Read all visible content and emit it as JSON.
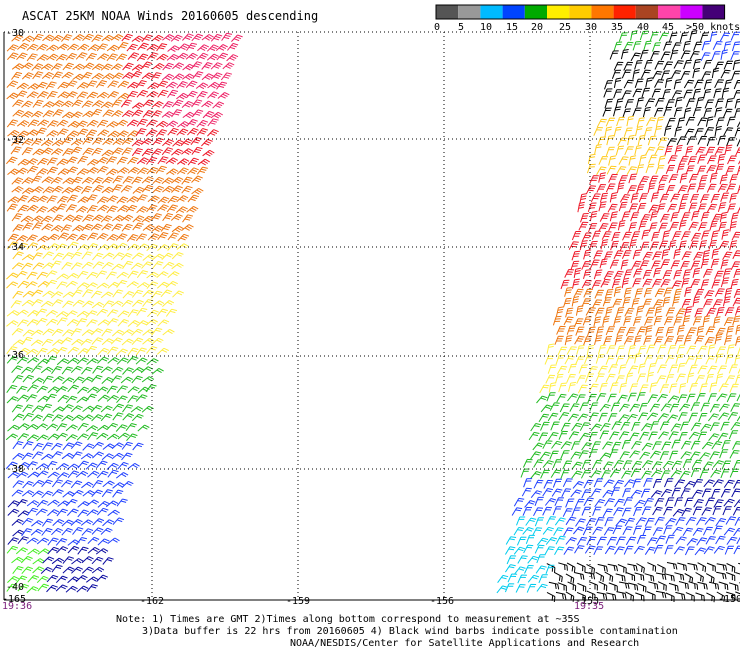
{
  "title": "ASCAT 25KM NOAA Winds 20160605 descending",
  "speed_scale": {
    "colors": [
      "#555555",
      "#999999",
      "#00bbff",
      "#0044ff",
      "#00aa00",
      "#ffee00",
      "#ffcc00",
      "#ff7700",
      "#ff2200",
      "#aa4422",
      "#ff44aa",
      "#cc00ff",
      "#440077"
    ],
    "labels": [
      "0",
      "5",
      "10",
      "15",
      "20",
      "25",
      "30",
      "35",
      "40",
      "45",
      ">50 knots"
    ]
  },
  "map": {
    "lat_labels": [
      "-30",
      "-32",
      "-34",
      "-36",
      "-38",
      "-40"
    ],
    "lon_labels": [
      "-165",
      "-162",
      "-159",
      "-156",
      "-153",
      "-150"
    ],
    "time_labels": [
      "19:36",
      "19:35"
    ],
    "lat_range": [
      -40,
      -30
    ],
    "lon_range": [
      -165,
      -150
    ],
    "swath_colors": {
      "black": "#000000",
      "cyan": "#00ccee",
      "blue": "#2040ff",
      "navy": "#0a0aa0",
      "green": "#22bb22",
      "yellow": "#ffee44",
      "gold": "#ffcc22",
      "orange": "#ee7711",
      "red": "#ee1a2a",
      "magenta": "#ee2266",
      "lime": "#44ee22"
    }
  },
  "notes": {
    "line1": "Note: 1) Times are GMT 2)Times along bottom correspond to measurement at ~35S",
    "line2": "3)Data buffer is 22 hrs from 20160605 4) Black wind barbs indicate possible contamination",
    "line3": "NOAA/NESDIS/Center for Satellite Applications and Research"
  }
}
